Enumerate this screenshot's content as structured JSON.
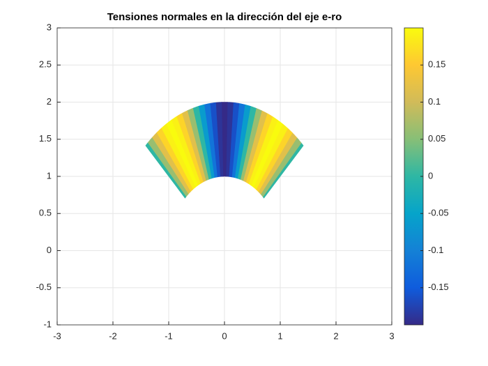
{
  "chart_data": {
    "type": "polar-field",
    "title": "Tensiones normales en la dirección del eje e-ro",
    "r_range": [
      1,
      2
    ],
    "theta": [
      45,
      48,
      51,
      54,
      57,
      60,
      63,
      66,
      69,
      72,
      75,
      78,
      81,
      84,
      87,
      90,
      93,
      96,
      99,
      102,
      105,
      108,
      111,
      114,
      117,
      120,
      123,
      126,
      129,
      132,
      135
    ],
    "values": [
      0,
      0.062,
      0.118,
      0.162,
      0.19,
      0.2,
      0.19,
      0.162,
      0.118,
      0.062,
      0,
      -0.062,
      -0.118,
      -0.162,
      -0.19,
      -0.2,
      -0.19,
      -0.162,
      -0.118,
      -0.062,
      0,
      0.062,
      0.118,
      0.162,
      0.19,
      0.2,
      0.19,
      0.162,
      0.118,
      0.062,
      0
    ],
    "xlim": [
      -3,
      3
    ],
    "xticks": [
      -3,
      -2,
      -1,
      0,
      1,
      2,
      3
    ],
    "ylim": [
      -1,
      3
    ],
    "yticks": [
      -1,
      -0.5,
      0,
      0.5,
      1,
      1.5,
      2,
      2.5,
      3
    ],
    "grid": true,
    "clim": [
      -0.2,
      0.2
    ],
    "cticks": [
      -0.15,
      -0.1,
      -0.05,
      0,
      0.05,
      0.1,
      0.15
    ],
    "colormap": [
      "#352a87",
      "#0f5cdd",
      "#1481d6",
      "#06a4ca",
      "#2eb7a4",
      "#87bf77",
      "#d1bb59",
      "#fec832",
      "#f9fb0e"
    ]
  }
}
